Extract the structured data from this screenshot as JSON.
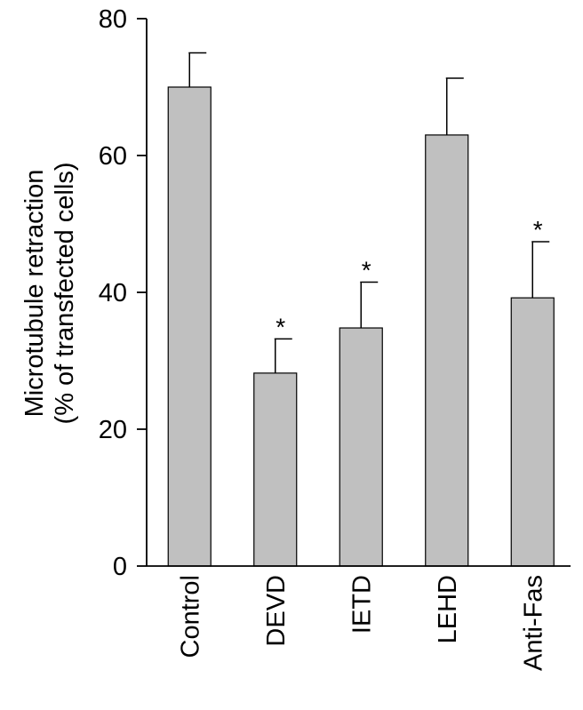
{
  "chart_data": {
    "type": "bar",
    "title": "",
    "ylabel_line1": "Microtubule retraction",
    "ylabel_line2": "(% of transfected cells)",
    "xlabel": "",
    "categories": [
      "Control",
      "DEVD",
      "IETD",
      "LEHD",
      "Anti-Fas"
    ],
    "values": [
      70,
      28.2,
      34.8,
      63,
      39.2
    ],
    "error_upper": [
      5,
      5,
      6.7,
      8.3,
      8.2
    ],
    "significance": [
      "",
      "*",
      "*",
      "",
      "*"
    ],
    "ylim": [
      0,
      80
    ],
    "yticks": [
      0,
      20,
      40,
      60,
      80
    ],
    "bar_color": "#c0c0c0",
    "bar_edge_color": "#000000",
    "grid": false,
    "legend": "none"
  }
}
